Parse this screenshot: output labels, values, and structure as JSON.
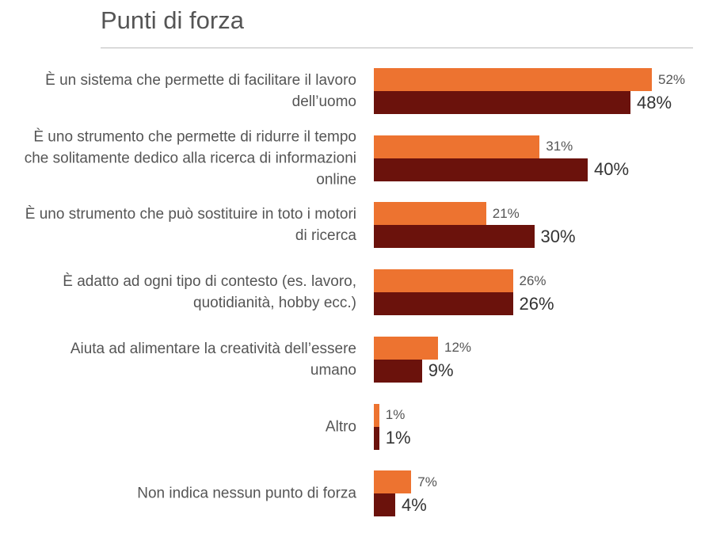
{
  "chart_data": {
    "type": "bar",
    "orientation": "horizontal",
    "title": "Punti di forza",
    "categories": [
      "È un sistema che permette di facilitare il lavoro dell’uomo",
      "È uno strumento che permette di ridurre il tempo che solitamente dedico alla ricerca di informazioni online",
      "È uno strumento che può sostituire in toto i motori di ricerca",
      "È adatto ad ogni tipo di contesto (es. lavoro, quotidianità, hobby ecc.)",
      "Aiuta ad alimentare la creatività dell’essere umano",
      "Altro",
      "Non indica nessun punto di forza"
    ],
    "series": [
      {
        "color": "#ed7330",
        "values": [
          52,
          31,
          21,
          26,
          12,
          1,
          7
        ],
        "value_labels": [
          "52%",
          "31%",
          "21%",
          "26%",
          "12%",
          "1%",
          "7%"
        ]
      },
      {
        "color": "#6b120c",
        "values": [
          48,
          40,
          30,
          26,
          9,
          1,
          4
        ],
        "value_labels": [
          "48%",
          "40%",
          "30%",
          "26%",
          "9%",
          "1%",
          "4%"
        ]
      }
    ]
  }
}
